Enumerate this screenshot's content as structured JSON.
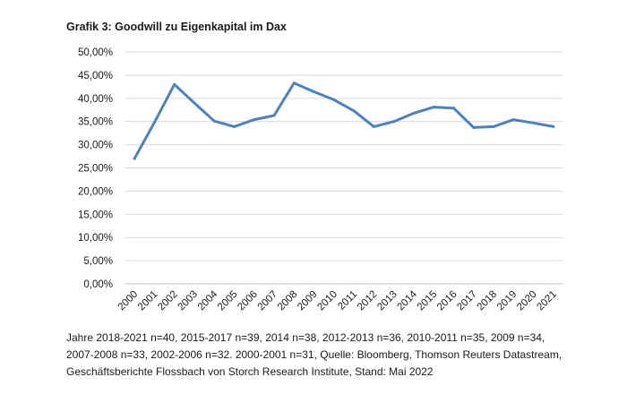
{
  "chart_data": {
    "type": "line",
    "title": "Grafik 3: Goodwill zu Eigenkapital im Dax",
    "xlabel": "",
    "ylabel": "",
    "ylim": [
      0,
      50
    ],
    "y_ticks": [
      "0,00%",
      "5,00%",
      "10,00%",
      "15,00%",
      "20,00%",
      "25,00%",
      "30,00%",
      "35,00%",
      "40,00%",
      "45,00%",
      "50,00%"
    ],
    "grid": true,
    "legend": "none",
    "x": [
      "2000",
      "2001",
      "2002",
      "2003",
      "2004",
      "2005",
      "2006",
      "2007",
      "2008",
      "2009",
      "2010",
      "2011",
      "2012",
      "2013",
      "2014",
      "2015",
      "2016",
      "2017",
      "2018",
      "2019",
      "2020",
      "2021"
    ],
    "series": [
      {
        "color": "#4f81bd",
        "values": [
          27.0,
          34.8,
          43.0,
          39.0,
          35.1,
          33.9,
          35.4,
          36.3,
          43.3,
          41.4,
          39.7,
          37.3,
          33.9,
          35.0,
          36.8,
          38.1,
          37.9,
          33.7,
          33.9,
          35.4,
          34.7,
          33.9
        ]
      }
    ]
  },
  "caption": "Jahre 2018-2021 n=40, 2015-2017 n=39, 2014 n=38, 2012-2013 n=36, 2010-2011 n=35, 2009 n=34,  2007-2008 n=33, 2002-2006 n=32. 2000-2001 n=31, Quelle: Bloomberg, Thomson Reuters Datastream, Geschäftsberichte Flossbach von Storch Research Institute, Stand: Mai 2022"
}
